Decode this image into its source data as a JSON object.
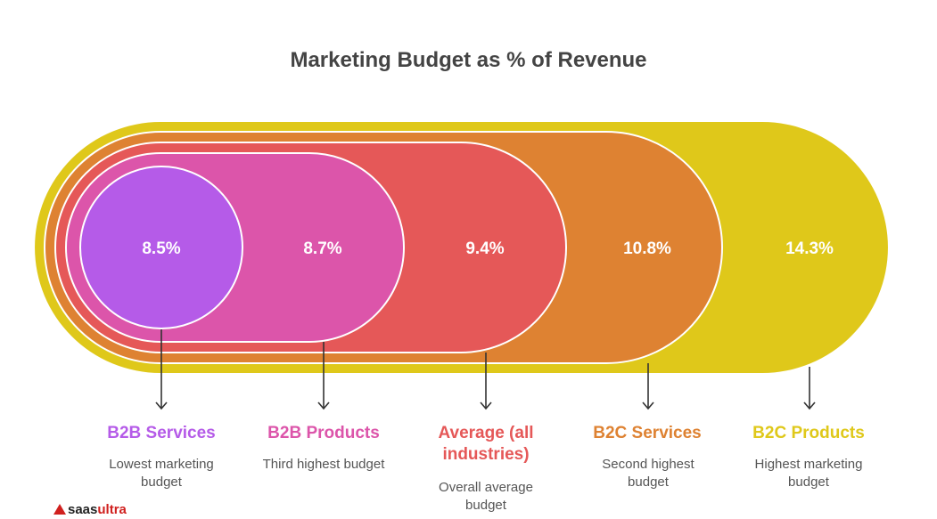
{
  "title": "Marketing Budget as % of Revenue",
  "segments": [
    {
      "value": "8.5%",
      "label": "B2B Services",
      "desc": "Lowest marketing budget",
      "color": "#b55be8"
    },
    {
      "value": "8.7%",
      "label": "B2B Products",
      "desc": "Third highest budget",
      "color": "#dc55aa"
    },
    {
      "value": "9.4%",
      "label": "Average (all industries)",
      "desc": "Overall average budget",
      "color": "#e55858"
    },
    {
      "value": "10.8%",
      "label": "B2C Services",
      "desc": "Second highest budget",
      "color": "#de8232"
    },
    {
      "value": "14.3%",
      "label": "B2C Products",
      "desc": "Highest marketing budget",
      "color": "#dfc81a"
    }
  ],
  "brand": {
    "part1": "saas",
    "part2": "ultra"
  }
}
